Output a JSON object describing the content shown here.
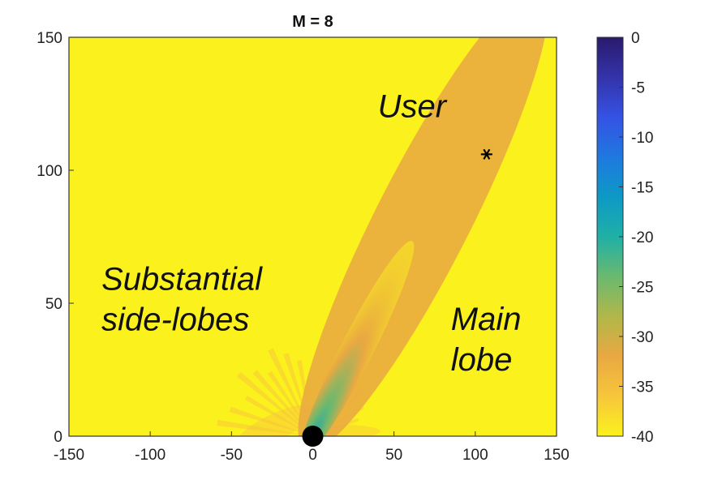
{
  "chart_data": {
    "type": "heatmap",
    "title": "M = 8",
    "xlabel": "",
    "ylabel": "",
    "xlim": [
      -150,
      150
    ],
    "ylim": [
      0,
      150
    ],
    "x_ticks": [
      "-150",
      "-100",
      "-50",
      "0",
      "50",
      "100",
      "150"
    ],
    "y_ticks": [
      "0",
      "50",
      "100",
      "150"
    ],
    "colorbar": {
      "range": [
        -40,
        0
      ],
      "ticks": [
        "0",
        "-5",
        "-10",
        "-15",
        "-20",
        "-25",
        "-30",
        "-35",
        "-40"
      ],
      "colors": [
        "#fbf21d",
        "#f7c63b",
        "#e9a842",
        "#b1b74a",
        "#6ab96f",
        "#1fb0a6",
        "#0d99c6",
        "#1f78e0",
        "#3552e4",
        "#3433aa",
        "#2a1a6e"
      ]
    },
    "annotations": [
      {
        "lines": [
          "User"
        ],
        "x": 40,
        "y": 120
      },
      {
        "lines": [
          "Substantial",
          "side-lobes"
        ],
        "x": -130,
        "y": 55
      },
      {
        "lines": [
          "Main",
          "lobe"
        ],
        "x": 85,
        "y": 40
      }
    ],
    "markers": [
      {
        "name": "user",
        "symbol": "*",
        "x": 107,
        "y": 106
      },
      {
        "name": "base-station",
        "symbol": "filled-circle",
        "x": 0,
        "y": 0
      }
    ],
    "main_lobe": {
      "angle_deg": 63,
      "peak_db": -18,
      "background_db": -40
    }
  }
}
